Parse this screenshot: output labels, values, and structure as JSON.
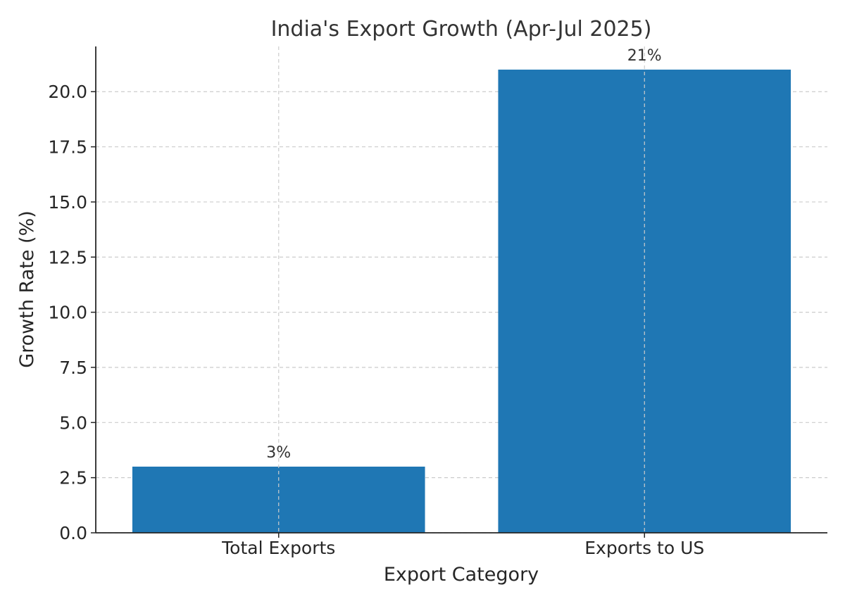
{
  "chart_data": {
    "type": "bar",
    "title": "India's Export Growth (Apr-Jul 2025)",
    "xlabel": "Export Category",
    "ylabel": "Growth Rate (%)",
    "categories": [
      "Total Exports",
      "Exports to US"
    ],
    "values": [
      3,
      21
    ],
    "data_labels": [
      "3%",
      "21%"
    ],
    "ylim": [
      0,
      22.05
    ],
    "yticks": [
      0,
      2.5,
      5,
      7.5,
      10,
      12.5,
      15,
      17.5,
      20
    ],
    "ytick_labels": [
      "0.0",
      "2.5",
      "5.0",
      "7.5",
      "10.0",
      "12.5",
      "15.0",
      "17.5",
      "20.0"
    ],
    "grid": true,
    "legend": "none",
    "colors": {
      "bar": "#1f77b4",
      "text": "#333333",
      "axis": "#262626",
      "grid": "#cccccc"
    }
  }
}
